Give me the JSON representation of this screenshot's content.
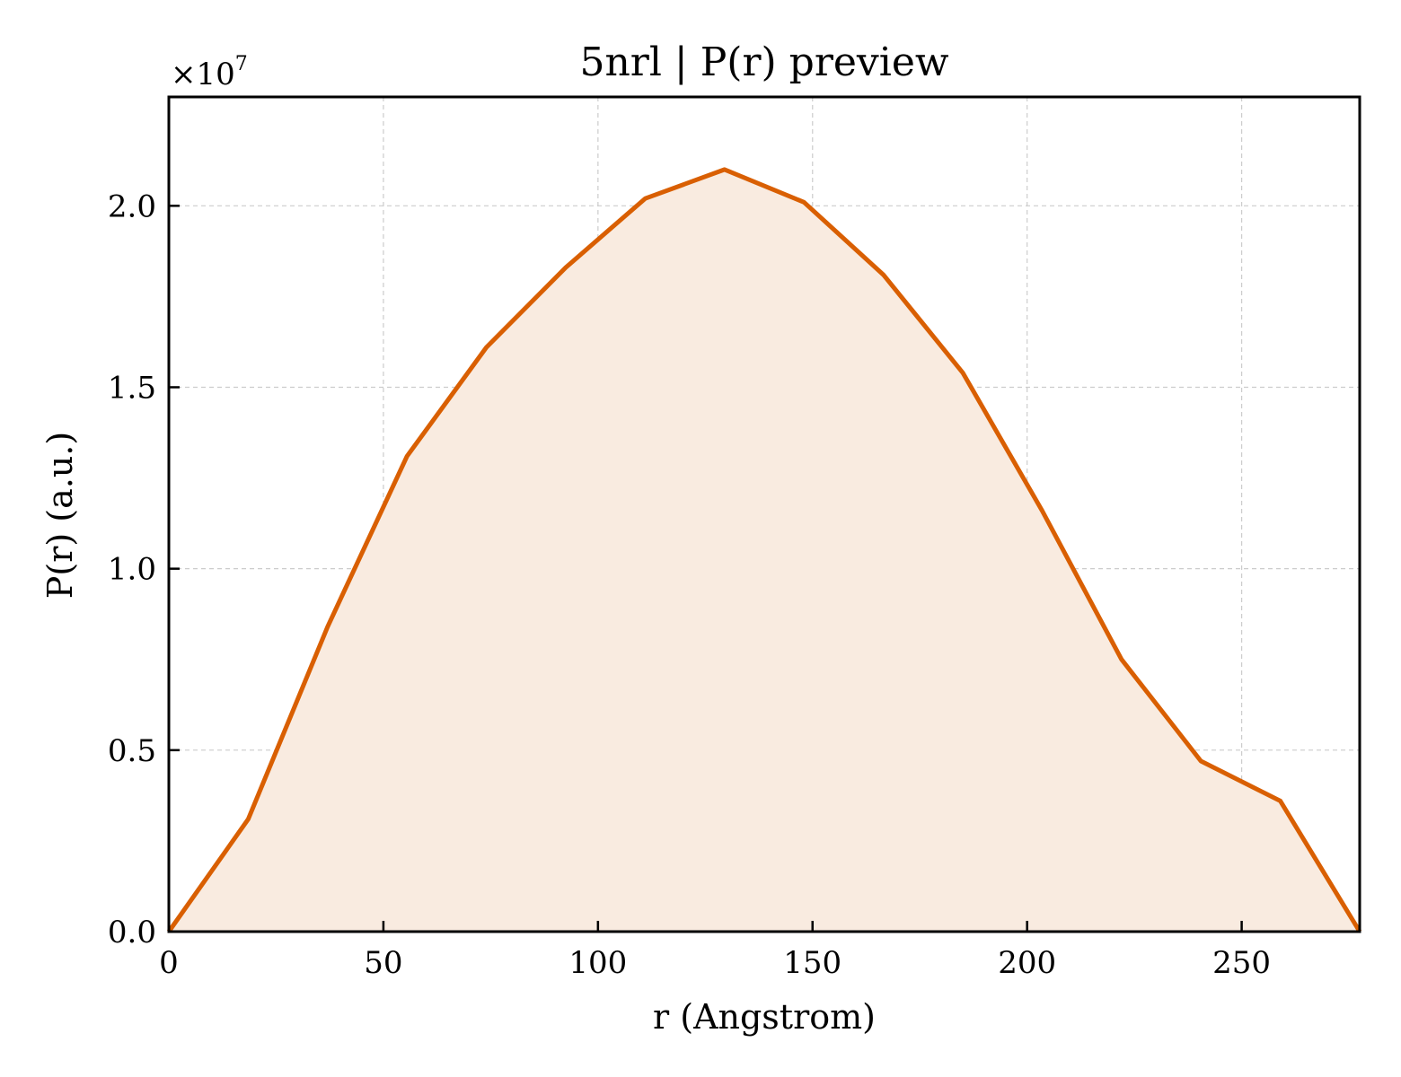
{
  "chart_data": {
    "type": "area",
    "title": "5nrl | P(r) preview",
    "xlabel": "r (Angstrom)",
    "ylabel": "P(r) (a.u.)",
    "y_multiplier": "×10",
    "y_multiplier_exp": "7",
    "xlim": [
      0,
      277.5
    ],
    "ylim": [
      0,
      2.3
    ],
    "xticks": [
      0,
      50,
      100,
      150,
      200,
      250
    ],
    "xtick_labels": [
      "0",
      "50",
      "100",
      "150",
      "200",
      "250"
    ],
    "yticks": [
      0.0,
      0.5,
      1.0,
      1.5,
      2.0
    ],
    "ytick_labels": [
      "0.0",
      "0.5",
      "1.0",
      "1.5",
      "2.0"
    ],
    "grid": true,
    "line_color": "#d95f02",
    "fill_color": "#f9ebe0",
    "series": [
      {
        "x": [
          0,
          18.5,
          37,
          55.5,
          74,
          92.5,
          111,
          129.5,
          148,
          166.5,
          185,
          203.5,
          222,
          240.5,
          259,
          277.5
        ],
        "y": [
          0,
          0.31,
          0.84,
          1.31,
          1.61,
          1.83,
          2.02,
          2.1,
          2.01,
          1.81,
          1.54,
          1.16,
          0.75,
          0.47,
          0.36,
          0
        ]
      }
    ]
  }
}
